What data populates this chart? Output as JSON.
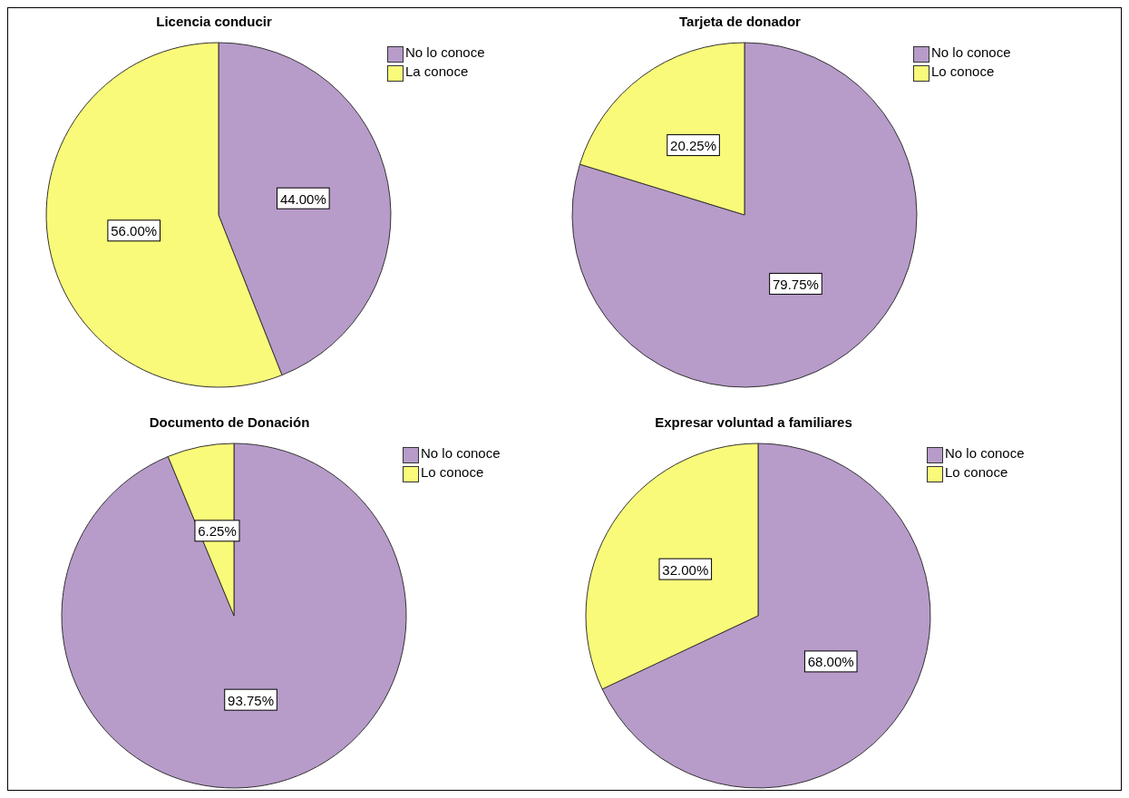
{
  "chart_data": [
    {
      "type": "pie",
      "title": "Licencia conducir",
      "categories": [
        "No lo conoce",
        "La conoce"
      ],
      "values": [
        44,
        56
      ],
      "colors": [
        "#b79bc9",
        "#fafa7a"
      ],
      "value_labels": [
        "44.00%",
        "56.00%"
      ],
      "legend": "top right"
    },
    {
      "type": "pie",
      "title": "Tarjeta de donador",
      "categories": [
        "No lo conoce",
        "Lo conoce"
      ],
      "values": [
        79.75,
        20.25
      ],
      "colors": [
        "#b79bc9",
        "#fafa7a"
      ],
      "value_labels": [
        "79.75%",
        "20.25%"
      ],
      "legend": "top right"
    },
    {
      "type": "pie",
      "title": "Documento de Donación",
      "categories": [
        "No lo conoce",
        "Lo conoce"
      ],
      "values": [
        93.75,
        6.25
      ],
      "colors": [
        "#b79bc9",
        "#fafa7a"
      ],
      "value_labels": [
        "93.75%",
        "6.25%"
      ],
      "legend": "top right"
    },
    {
      "type": "pie",
      "title": "Expresar voluntad a familiares",
      "categories": [
        "No lo conoce",
        "Lo conoce"
      ],
      "values": [
        68,
        32
      ],
      "colors": [
        "#b79bc9",
        "#fafa7a"
      ],
      "value_labels": [
        "68.00%",
        "32.00%"
      ],
      "legend": "top right"
    }
  ]
}
